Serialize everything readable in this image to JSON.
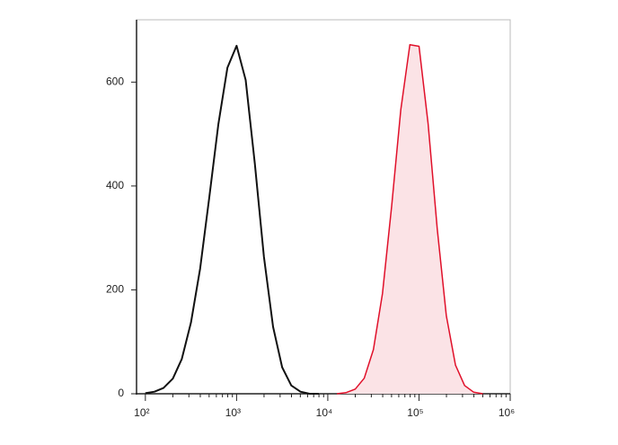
{
  "chart_data": {
    "type": "histogram-line",
    "xscale": "log",
    "xlim": [
      80,
      1000000
    ],
    "xticks": [
      {
        "value": 100,
        "label": "10²"
      },
      {
        "value": 1000,
        "label": "10³"
      },
      {
        "value": 10000,
        "label": "10⁴"
      },
      {
        "value": 100000,
        "label": "10⁵"
      },
      {
        "value": 1000000,
        "label": "10⁶"
      }
    ],
    "ylim": [
      0,
      720
    ],
    "yticks": [
      0,
      200,
      400,
      600
    ],
    "series": [
      {
        "color": "#111111",
        "x": [
          100,
          126,
          158,
          200,
          251,
          316,
          398,
          501,
          631,
          794,
          1000,
          1259,
          1585,
          1995,
          2512,
          3162,
          3981,
          5012,
          6310,
          7943
        ],
        "values": [
          1,
          4,
          11,
          29,
          67,
          137,
          241,
          377,
          519,
          628,
          670,
          604,
          443,
          264,
          129,
          51,
          16,
          4,
          0,
          0
        ]
      },
      {
        "color": "#e0102a",
        "fill": "#fbe3e6",
        "x": [
          12600,
          15800,
          20000,
          25100,
          31600,
          39800,
          50100,
          63100,
          79400,
          100000,
          125900,
          158500,
          199500,
          251200,
          316200,
          398100,
          501200
        ],
        "values": [
          0,
          2,
          9,
          30,
          85,
          193,
          361,
          547,
          672,
          669,
          520,
          317,
          150,
          55,
          16,
          3,
          0
        ]
      }
    ]
  }
}
